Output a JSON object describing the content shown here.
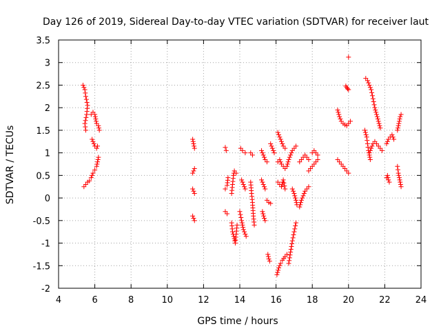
{
  "chart_data": {
    "type": "scatter",
    "title": "Day 126 of 2019, Sidereal Day-to-day VTEC variation (SDTVAR) for receiver laut",
    "xlabel": "GPS time / hours",
    "ylabel": "SDTVAR / TECUs",
    "xlim": [
      4,
      24
    ],
    "ylim": [
      -2,
      3.5
    ],
    "xticks": [
      "4",
      "6",
      "8",
      "10",
      "12",
      "14",
      "16",
      "18",
      "20",
      "22",
      "24"
    ],
    "yticks": [
      "-2",
      "-1.5",
      "-1",
      "-0.5",
      "0",
      "0.5",
      "1",
      "1.5",
      "2",
      "2.5",
      "3",
      "3.5"
    ],
    "grid": true,
    "marker": "+",
    "color": "#ff0000",
    "series": [
      {
        "name": "SDTVAR",
        "segments": [
          [
            [
              5.35,
              2.5
            ],
            [
              5.45,
              2.4
            ],
            [
              5.5,
              2.25
            ],
            [
              5.6,
              2.05
            ],
            [
              5.55,
              1.85
            ],
            [
              5.45,
              1.65
            ],
            [
              5.5,
              1.5
            ]
          ],
          [
            [
              5.4,
              0.25
            ],
            [
              5.5,
              0.3
            ],
            [
              5.6,
              0.35
            ],
            [
              5.7,
              0.38
            ]
          ],
          [
            [
              5.8,
              1.85
            ],
            [
              5.9,
              1.9
            ],
            [
              6.0,
              1.85
            ],
            [
              6.05,
              1.75
            ],
            [
              6.1,
              1.65
            ],
            [
              6.2,
              1.6
            ],
            [
              6.25,
              1.5
            ]
          ],
          [
            [
              5.85,
              1.3
            ],
            [
              5.95,
              1.2
            ],
            [
              6.0,
              1.15
            ],
            [
              6.1,
              1.1
            ],
            [
              6.15,
              1.15
            ]
          ],
          [
            [
              5.8,
              0.45
            ],
            [
              5.9,
              0.55
            ],
            [
              6.0,
              0.62
            ],
            [
              6.1,
              0.7
            ],
            [
              6.15,
              0.8
            ],
            [
              6.2,
              0.9
            ]
          ],
          [
            [
              11.4,
              1.3
            ],
            [
              11.45,
              1.2
            ],
            [
              11.5,
              1.1
            ]
          ],
          [
            [
              11.4,
              0.55
            ],
            [
              11.45,
              0.6
            ],
            [
              11.5,
              0.65
            ]
          ],
          [
            [
              11.4,
              0.2
            ],
            [
              11.45,
              0.15
            ],
            [
              11.5,
              0.1
            ]
          ],
          [
            [
              11.4,
              -0.4
            ],
            [
              11.45,
              -0.45
            ],
            [
              11.5,
              -0.5
            ]
          ],
          [
            [
              13.2,
              1.12
            ],
            [
              13.25,
              1.05
            ]
          ],
          [
            [
              13.2,
              0.2
            ],
            [
              13.3,
              0.28
            ],
            [
              13.35,
              0.45
            ]
          ],
          [
            [
              13.2,
              -0.3
            ],
            [
              13.3,
              -0.35
            ]
          ],
          [
            [
              13.55,
              0.1
            ],
            [
              13.6,
              0.3
            ],
            [
              13.65,
              0.5
            ],
            [
              13.7,
              0.6
            ],
            [
              13.8,
              0.55
            ]
          ],
          [
            [
              13.55,
              -0.55
            ],
            [
              13.6,
              -0.75
            ],
            [
              13.7,
              -0.9
            ],
            [
              13.75,
              -1.0
            ],
            [
              13.8,
              -0.8
            ],
            [
              13.85,
              -0.6
            ]
          ],
          [
            [
              14.05,
              1.1
            ],
            [
              14.15,
              1.05
            ],
            [
              14.3,
              1.0
            ]
          ],
          [
            [
              14.0,
              -0.3
            ],
            [
              14.1,
              -0.5
            ],
            [
              14.15,
              -0.6
            ],
            [
              14.2,
              -0.7
            ],
            [
              14.3,
              -0.8
            ],
            [
              14.35,
              -0.85
            ]
          ],
          [
            [
              14.1,
              0.4
            ],
            [
              14.2,
              0.3
            ],
            [
              14.3,
              0.2
            ]
          ],
          [
            [
              14.6,
              1.0
            ],
            [
              14.7,
              0.95
            ]
          ],
          [
            [
              14.6,
              0.35
            ],
            [
              14.65,
              0.1
            ],
            [
              14.7,
              -0.1
            ],
            [
              14.75,
              -0.4
            ],
            [
              14.8,
              -0.6
            ]
          ],
          [
            [
              15.2,
              1.05
            ],
            [
              15.3,
              0.95
            ],
            [
              15.4,
              0.85
            ],
            [
              15.5,
              0.8
            ]
          ],
          [
            [
              15.2,
              0.4
            ],
            [
              15.3,
              0.3
            ],
            [
              15.4,
              0.2
            ]
          ],
          [
            [
              15.25,
              -0.3
            ],
            [
              15.35,
              -0.45
            ],
            [
              15.4,
              -0.5
            ]
          ],
          [
            [
              15.5,
              -0.05
            ],
            [
              15.6,
              -0.1
            ],
            [
              15.7,
              -0.12
            ]
          ],
          [
            [
              15.55,
              -1.25
            ],
            [
              15.6,
              -1.35
            ],
            [
              15.65,
              -1.4
            ]
          ],
          [
            [
              15.7,
              1.2
            ],
            [
              15.8,
              1.1
            ],
            [
              15.9,
              1.0
            ]
          ],
          [
            [
              16.1,
              1.45
            ],
            [
              16.2,
              1.35
            ],
            [
              16.3,
              1.25
            ],
            [
              16.4,
              1.15
            ],
            [
              16.5,
              1.1
            ]
          ],
          [
            [
              16.1,
              0.8
            ],
            [
              16.2,
              0.85
            ],
            [
              16.3,
              0.75
            ],
            [
              16.4,
              0.7
            ],
            [
              16.5,
              0.65
            ]
          ],
          [
            [
              16.1,
              0.35
            ],
            [
              16.2,
              0.3
            ],
            [
              16.3,
              0.25
            ],
            [
              16.4,
              0.4
            ],
            [
              16.5,
              0.2
            ]
          ],
          [
            [
              16.05,
              -1.7
            ],
            [
              16.15,
              -1.55
            ],
            [
              16.25,
              -1.45
            ],
            [
              16.35,
              -1.38
            ],
            [
              16.5,
              -1.3
            ],
            [
              16.6,
              -1.25
            ]
          ],
          [
            [
              16.6,
              0.7
            ],
            [
              16.7,
              0.85
            ],
            [
              16.8,
              0.95
            ],
            [
              16.9,
              1.05
            ],
            [
              17.0,
              1.1
            ],
            [
              17.1,
              1.15
            ]
          ],
          [
            [
              16.7,
              -1.45
            ],
            [
              16.8,
              -1.2
            ],
            [
              16.9,
              -0.95
            ],
            [
              17.0,
              -0.75
            ],
            [
              17.1,
              -0.55
            ]
          ],
          [
            [
              16.9,
              0.2
            ],
            [
              17.0,
              0.1
            ],
            [
              17.1,
              -0.05
            ],
            [
              17.15,
              -0.15
            ]
          ],
          [
            [
              17.3,
              0.8
            ],
            [
              17.4,
              0.85
            ],
            [
              17.5,
              0.9
            ],
            [
              17.6,
              0.95
            ],
            [
              17.7,
              0.9
            ],
            [
              17.8,
              0.85
            ]
          ],
          [
            [
              17.3,
              -0.2
            ],
            [
              17.4,
              -0.05
            ],
            [
              17.5,
              0.05
            ],
            [
              17.6,
              0.15
            ],
            [
              17.7,
              0.2
            ],
            [
              17.8,
              0.25
            ]
          ],
          [
            [
              17.8,
              0.6
            ],
            [
              17.9,
              0.65
            ],
            [
              18.0,
              0.7
            ],
            [
              18.1,
              0.75
            ],
            [
              18.2,
              0.8
            ],
            [
              18.3,
              0.85
            ]
          ],
          [
            [
              18.0,
              1.0
            ],
            [
              18.1,
              1.05
            ],
            [
              18.2,
              1.0
            ],
            [
              18.3,
              0.95
            ]
          ],
          [
            [
              19.4,
              1.95
            ],
            [
              19.5,
              1.8
            ],
            [
              19.6,
              1.7
            ],
            [
              19.7,
              1.65
            ],
            [
              19.8,
              1.62
            ],
            [
              19.9,
              1.6
            ],
            [
              20.0,
              1.65
            ],
            [
              20.1,
              1.7
            ]
          ],
          [
            [
              19.4,
              0.85
            ],
            [
              19.5,
              0.8
            ],
            [
              19.6,
              0.75
            ],
            [
              19.7,
              0.7
            ],
            [
              19.8,
              0.65
            ],
            [
              19.9,
              0.6
            ],
            [
              20.0,
              0.55
            ]
          ],
          [
            [
              19.85,
              2.48
            ],
            [
              19.9,
              2.45
            ],
            [
              19.95,
              2.42
            ],
            [
              20.0,
              2.4
            ]
          ],
          [
            [
              20.0,
              3.12
            ]
          ],
          [
            [
              20.9,
              1.5
            ],
            [
              21.0,
              1.35
            ],
            [
              21.05,
              1.2
            ],
            [
              21.1,
              1.05
            ],
            [
              21.15,
              0.95
            ],
            [
              21.2,
              0.85
            ]
          ],
          [
            [
              20.95,
              2.65
            ],
            [
              21.05,
              2.6
            ],
            [
              21.15,
              2.5
            ],
            [
              21.25,
              2.4
            ],
            [
              21.35,
              2.2
            ],
            [
              21.45,
              2.0
            ],
            [
              21.55,
              1.85
            ],
            [
              21.65,
              1.7
            ],
            [
              21.75,
              1.55
            ]
          ],
          [
            [
              21.15,
              1.0
            ],
            [
              21.25,
              1.1
            ],
            [
              21.35,
              1.2
            ],
            [
              21.45,
              1.25
            ],
            [
              21.55,
              1.2
            ],
            [
              21.65,
              1.15
            ],
            [
              21.75,
              1.1
            ],
            [
              21.85,
              1.05
            ]
          ],
          [
            [
              22.1,
              0.45
            ],
            [
              22.15,
              0.5
            ],
            [
              22.2,
              0.4
            ],
            [
              22.25,
              0.35
            ]
          ],
          [
            [
              22.1,
              1.2
            ],
            [
              22.2,
              1.3
            ],
            [
              22.3,
              1.35
            ],
            [
              22.4,
              1.4
            ],
            [
              22.5,
              1.3
            ]
          ],
          [
            [
              22.7,
              1.5
            ],
            [
              22.75,
              1.6
            ],
            [
              22.8,
              1.7
            ],
            [
              22.85,
              1.8
            ],
            [
              22.9,
              1.85
            ]
          ],
          [
            [
              22.7,
              0.7
            ],
            [
              22.75,
              0.55
            ],
            [
              22.8,
              0.45
            ],
            [
              22.85,
              0.35
            ],
            [
              22.9,
              0.25
            ]
          ]
        ]
      }
    ]
  }
}
